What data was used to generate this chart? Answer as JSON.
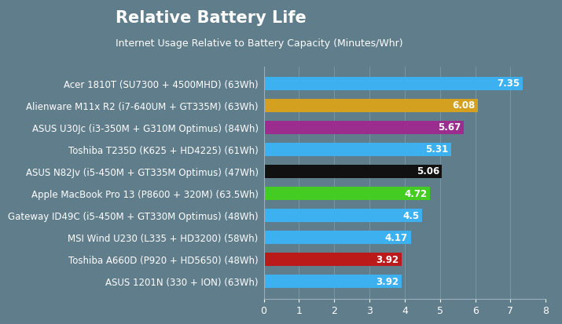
{
  "title": "Relative Battery Life",
  "subtitle": "Internet Usage Relative to Battery Capacity (Minutes/Whr)",
  "categories": [
    "Acer 1810T (SU7300 + 4500MHD) (63Wh)",
    "Alienware M11x R2 (i7-640UM + GT335M) (63Wh)",
    "ASUS U30Jc (i3-350M + G310M Optimus) (84Wh)",
    "Toshiba T235D (K625 + HD4225) (61Wh)",
    "ASUS N82Jv (i5-450M + GT335M Optimus) (47Wh)",
    "Apple MacBook Pro 13 (P8600 + 320M) (63.5Wh)",
    "Gateway ID49C (i5-450M + GT330M Optimus) (48Wh)",
    "MSI Wind U230 (L335 + HD3200) (58Wh)",
    "Toshiba A660D (P920 + HD5650) (48Wh)",
    "ASUS 1201N (330 + ION) (63Wh)"
  ],
  "values": [
    7.35,
    6.08,
    5.67,
    5.31,
    5.06,
    4.72,
    4.5,
    4.17,
    3.92,
    3.92
  ],
  "bar_colors": [
    "#3db0f0",
    "#d4a020",
    "#9b2d8e",
    "#3db0f0",
    "#111111",
    "#44cc22",
    "#3db0f0",
    "#3db0f0",
    "#bb1a1a",
    "#3db0f0"
  ],
  "title_bg_color": "#d4a020",
  "title_color": "#ffffff",
  "subtitle_color": "#ffffff",
  "plot_bg_color": "#607d8b",
  "fig_bg_color": "#607d8b",
  "label_color": "#ffffff",
  "value_color": "#ffffff",
  "grid_color": "#7a9aaa",
  "xlim": [
    0,
    8
  ],
  "xticks": [
    0,
    1,
    2,
    3,
    4,
    5,
    6,
    7,
    8
  ],
  "title_fontsize": 15,
  "subtitle_fontsize": 9,
  "label_fontsize": 8.5,
  "value_fontsize": 8.5,
  "xtick_fontsize": 9
}
